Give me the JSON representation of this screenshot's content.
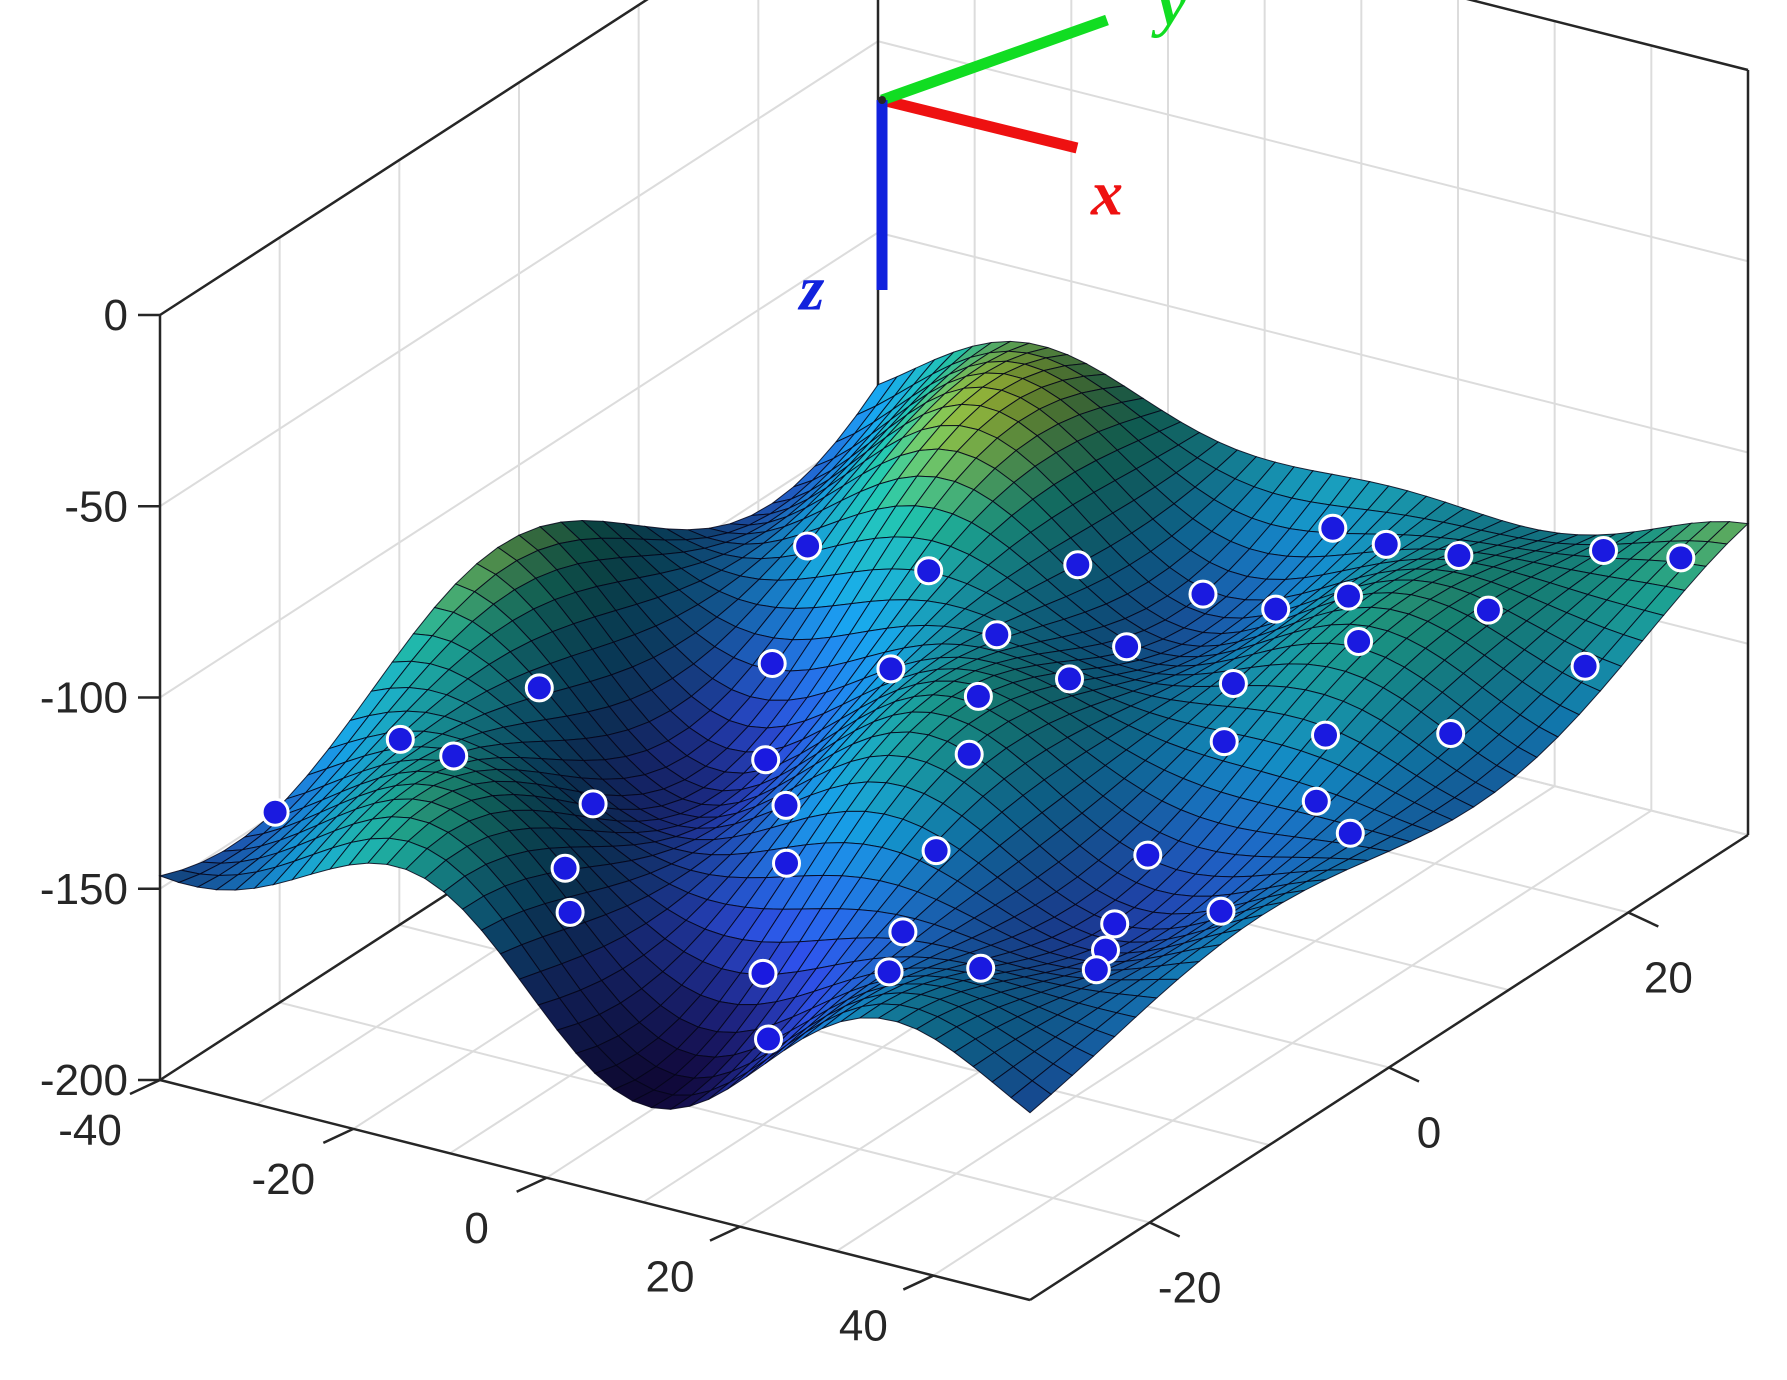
{
  "chart_data": {
    "type": "surface3d",
    "title": "",
    "x_axis": {
      "range": [
        -40,
        50
      ],
      "ticks": [
        -40,
        -20,
        0,
        20,
        40
      ],
      "label": ""
    },
    "y_axis": {
      "range": [
        -30,
        30
      ],
      "ticks": [
        -20,
        0,
        20
      ],
      "label": ""
    },
    "z_axis": {
      "range": [
        -200,
        0
      ],
      "ticks": [
        0,
        -50,
        -100,
        -150,
        -200
      ],
      "label": ""
    },
    "grid": true,
    "surface": {
      "colormap": "parula",
      "mean_z": -140,
      "note_z_range": [
        -175,
        -115
      ]
    },
    "points": [
      {
        "x": -38,
        "y": -22,
        "z": -120
      },
      {
        "x": -30,
        "y": -18,
        "z": -125
      },
      {
        "x": -22,
        "y": -20,
        "z": -130
      },
      {
        "x": -28,
        "y": -8,
        "z": -128
      },
      {
        "x": -15,
        "y": -14,
        "z": -132
      },
      {
        "x": -8,
        "y": -22,
        "z": -165
      },
      {
        "x": -5,
        "y": -24,
        "z": -168
      },
      {
        "x": -12,
        "y": -2,
        "z": -118
      },
      {
        "x": -20,
        "y": 5,
        "z": -112
      },
      {
        "x": -25,
        "y": 12,
        "z": -120
      },
      {
        "x": -10,
        "y": 10,
        "z": -125
      },
      {
        "x": -4,
        "y": 2,
        "z": -135
      },
      {
        "x": 0,
        "y": -10,
        "z": -140
      },
      {
        "x": 5,
        "y": -14,
        "z": -148
      },
      {
        "x": 2,
        "y": 6,
        "z": -130
      },
      {
        "x": 8,
        "y": 12,
        "z": -115
      },
      {
        "x": 10,
        "y": -2,
        "z": -135
      },
      {
        "x": 12,
        "y": 4,
        "z": -130
      },
      {
        "x": 14,
        "y": -6,
        "z": -138
      },
      {
        "x": 18,
        "y": -12,
        "z": -150
      },
      {
        "x": 22,
        "y": -18,
        "z": -160
      },
      {
        "x": 16,
        "y": 18,
        "z": -108
      },
      {
        "x": 24,
        "y": 8,
        "z": -128
      },
      {
        "x": 28,
        "y": 4,
        "z": -132
      },
      {
        "x": 30,
        "y": -4,
        "z": -142
      },
      {
        "x": 34,
        "y": -10,
        "z": -152
      },
      {
        "x": 38,
        "y": -14,
        "z": -158
      },
      {
        "x": 42,
        "y": -18,
        "z": -170
      },
      {
        "x": 45,
        "y": -10,
        "z": -165
      },
      {
        "x": 26,
        "y": 16,
        "z": -118
      },
      {
        "x": 32,
        "y": 12,
        "z": -124
      },
      {
        "x": 36,
        "y": 6,
        "z": -132
      },
      {
        "x": 40,
        "y": 2,
        "z": -140
      },
      {
        "x": 30,
        "y": 22,
        "z": -115
      },
      {
        "x": 38,
        "y": 18,
        "z": -120
      },
      {
        "x": 44,
        "y": 10,
        "z": -130
      },
      {
        "x": 46,
        "y": 0,
        "z": -145
      },
      {
        "x": 20,
        "y": 24,
        "z": -110
      },
      {
        "x": 6,
        "y": 20,
        "z": -112
      },
      {
        "x": -2,
        "y": 16,
        "z": -118
      },
      {
        "x": 12,
        "y": 26,
        "z": -112
      },
      {
        "x": 40,
        "y": 26,
        "z": -122
      },
      {
        "x": 48,
        "y": 18,
        "z": -128
      },
      {
        "x": 48,
        "y": 26,
        "z": -135
      },
      {
        "x": 35,
        "y": -22,
        "z": -168
      },
      {
        "x": 28,
        "y": -24,
        "z": -172
      },
      {
        "x": 18,
        "y": -26,
        "z": -170
      },
      {
        "x": 10,
        "y": -20,
        "z": -160
      }
    ],
    "frame_axes": [
      {
        "name": "x",
        "color": "#ee1111"
      },
      {
        "name": "y",
        "color": "#11dd22"
      },
      {
        "name": "z",
        "color": "#1122dd"
      }
    ],
    "frame_labels": {
      "x": "x",
      "y": "y",
      "z": "z"
    }
  }
}
